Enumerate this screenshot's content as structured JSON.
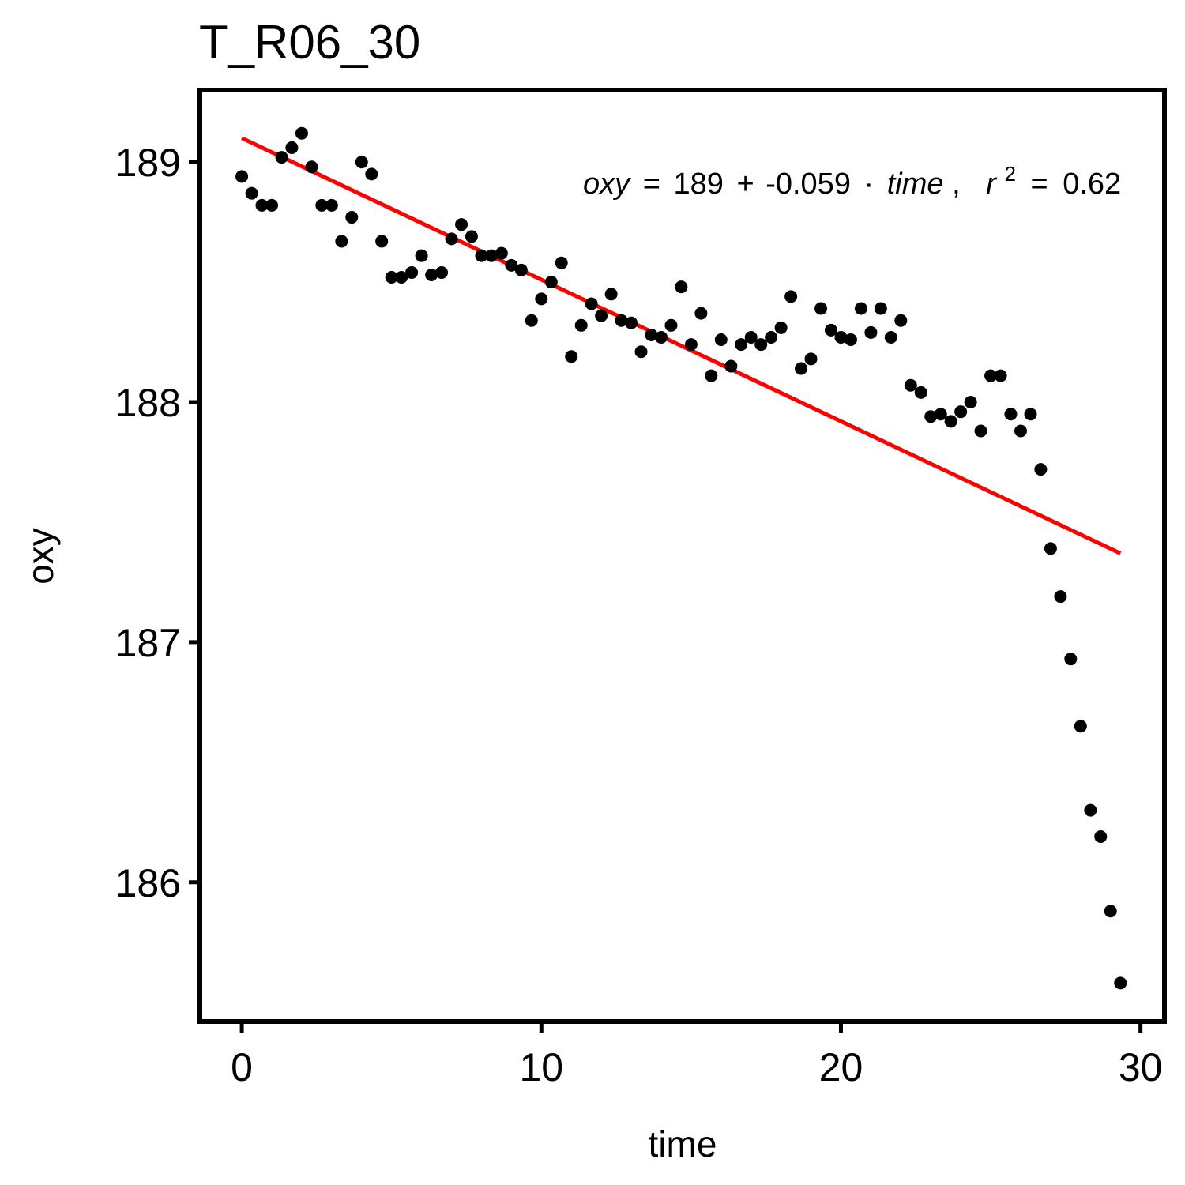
{
  "chart_data": {
    "type": "scatter",
    "title": "T_R06_30",
    "xlabel": "time",
    "ylabel": "oxy",
    "xlim": [
      -1.4,
      30.8
    ],
    "ylim": [
      185.42,
      189.3
    ],
    "xticks": [
      0,
      10,
      20,
      30
    ],
    "yticks": [
      186,
      187,
      188,
      189
    ],
    "grid": false,
    "point_color": "#000000",
    "line_color": "#ff0000",
    "points": {
      "x": [
        0,
        0.33,
        0.67,
        1,
        1.33,
        1.67,
        2,
        2.33,
        2.67,
        3,
        3.33,
        3.67,
        4,
        4.33,
        4.67,
        5,
        5.33,
        5.67,
        6,
        6.33,
        6.67,
        7,
        7.33,
        7.67,
        8,
        8.33,
        8.67,
        9,
        9.33,
        9.67,
        10,
        10.33,
        10.67,
        11,
        11.33,
        11.67,
        12,
        12.33,
        12.67,
        13,
        13.33,
        13.67,
        14,
        14.33,
        14.67,
        15,
        15.33,
        15.67,
        16,
        16.33,
        16.67,
        17,
        17.33,
        17.67,
        18,
        18.33,
        18.67,
        19,
        19.33,
        19.67,
        20,
        20.33,
        20.67,
        21,
        21.33,
        21.67,
        22,
        22.33,
        22.67,
        23,
        23.33,
        23.67,
        24,
        24.33,
        24.67,
        25,
        25.33,
        25.67,
        26,
        26.33,
        26.67,
        27,
        27.33,
        27.67,
        28,
        28.33,
        28.67,
        29,
        29.33
      ],
      "y": [
        188.94,
        188.87,
        188.82,
        188.82,
        189.02,
        189.06,
        189.12,
        188.98,
        188.82,
        188.82,
        188.67,
        188.77,
        189.0,
        188.95,
        188.67,
        188.52,
        188.52,
        188.54,
        188.61,
        188.53,
        188.54,
        188.68,
        188.74,
        188.69,
        188.61,
        188.61,
        188.62,
        188.57,
        188.55,
        188.34,
        188.43,
        188.5,
        188.58,
        188.19,
        188.32,
        188.41,
        188.36,
        188.45,
        188.34,
        188.33,
        188.21,
        188.28,
        188.27,
        188.32,
        188.48,
        188.24,
        188.37,
        188.11,
        188.26,
        188.15,
        188.24,
        188.27,
        188.24,
        188.27,
        188.31,
        188.44,
        188.14,
        188.18,
        188.39,
        188.3,
        188.27,
        188.26,
        188.39,
        188.29,
        188.39,
        188.27,
        188.34,
        188.07,
        188.04,
        187.94,
        187.95,
        187.92,
        187.96,
        188.0,
        187.88,
        188.11,
        188.11,
        187.95,
        187.88,
        187.95,
        187.72,
        187.39,
        187.19,
        186.93,
        186.65,
        186.3,
        186.19,
        185.88,
        185.58
      ]
    },
    "fit_line": {
      "x": [
        0,
        29.33
      ],
      "y": [
        189.1,
        187.37
      ]
    },
    "annotation": {
      "equation_lhs": "oxy",
      "equals": "=",
      "intercept": "189",
      "plus": "+",
      "slope": "-0.059",
      "dot": "·",
      "variable": "time",
      "comma": ",",
      "r_symbol": "r",
      "r_exponent": "2",
      "r_equals": "=",
      "r_value": "0.62"
    }
  }
}
